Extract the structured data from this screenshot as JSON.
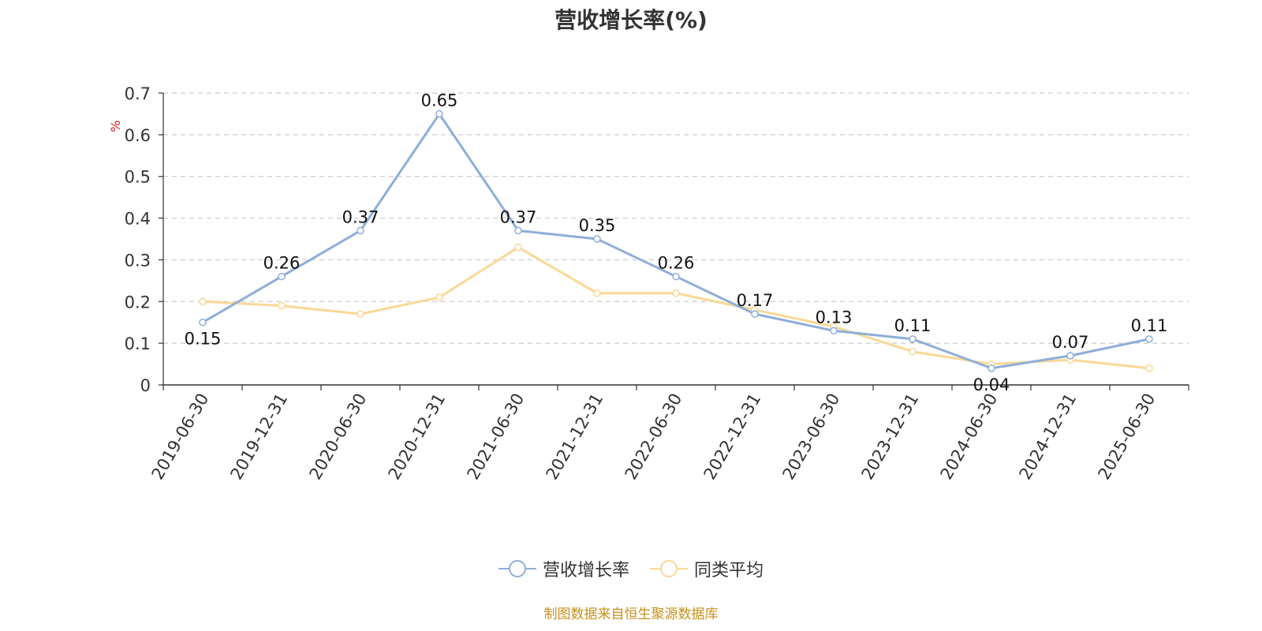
{
  "chart_data": {
    "type": "line",
    "title": "营收增长率(%)",
    "ylabel": "%",
    "xlabel": "",
    "categories": [
      "2019-06-30",
      "2019-12-31",
      "2020-06-30",
      "2020-12-31",
      "2021-06-30",
      "2021-12-31",
      "2022-06-30",
      "2022-12-31",
      "2023-06-30",
      "2023-12-31",
      "2024-06-30",
      "2024-12-31",
      "2025-06-30"
    ],
    "series": [
      {
        "name": "营收增长率",
        "color": "#8eaed8",
        "values": [
          0.15,
          0.26,
          0.37,
          0.65,
          0.37,
          0.35,
          0.26,
          0.17,
          0.13,
          0.11,
          0.04,
          0.07,
          0.11
        ],
        "data_labels": true
      },
      {
        "name": "同类平均",
        "color": "#fad896",
        "values": [
          0.2,
          0.19,
          0.17,
          0.21,
          0.33,
          0.22,
          0.22,
          0.18,
          0.14,
          0.08,
          0.05,
          0.06,
          0.04
        ],
        "data_labels": false
      }
    ],
    "ylim": [
      0,
      0.7
    ],
    "yticks": [
      "0",
      "0.1",
      "0.2",
      "0.3",
      "0.4",
      "0.5",
      "0.6",
      "0.7"
    ],
    "grid": true,
    "legend": "bottom-center"
  },
  "footer": {
    "source": "制图数据来自恒生聚源数据库"
  }
}
